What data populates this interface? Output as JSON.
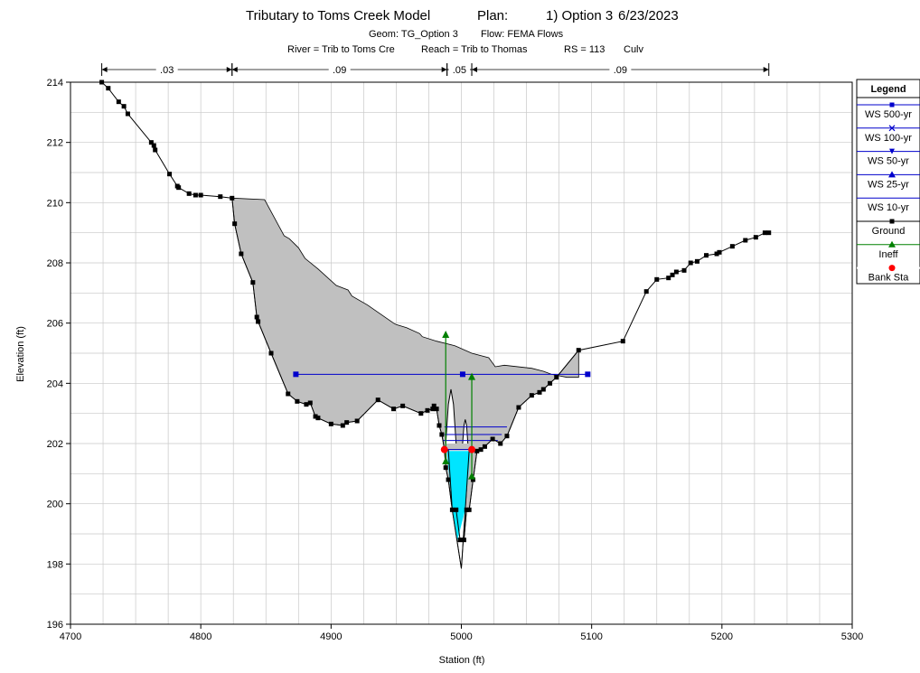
{
  "chart_data": {
    "type": "line",
    "title": "Tributary to Toms Creek Model",
    "title_plan": "Plan:",
    "title_option": "1) Option 3",
    "title_date": "6/23/2023",
    "subtitle_geom": "Geom: TG_Option 3",
    "subtitle_flow": "Flow: FEMA Flows",
    "subtitle_river": "River = Trib to Toms Cre",
    "subtitle_reach": "Reach = Trib to Thomas",
    "subtitle_rs": "RS = 113",
    "subtitle_type": "Culv",
    "xlabel": "Station (ft)",
    "ylabel": "Elevation (ft)",
    "xlim": [
      4700,
      5300
    ],
    "ylim": [
      196,
      214
    ],
    "xticks": [
      "4700",
      "4800",
      "4900",
      "5000",
      "5100",
      "5200",
      "5300"
    ],
    "yticks": [
      "196",
      "198",
      "200",
      "202",
      "204",
      "206",
      "208",
      "210",
      "212",
      "214"
    ],
    "grid": true,
    "legend_position": "right",
    "legend_title": "Legend",
    "legend": [
      {
        "label": "WS 500-yr",
        "color": "#0000cc",
        "marker": "square"
      },
      {
        "label": "WS 100-yr",
        "color": "#0000cc",
        "marker": "x"
      },
      {
        "label": "WS 50-yr",
        "color": "#0000cc",
        "marker": "triangle-down"
      },
      {
        "label": "WS 25-yr",
        "color": "#0000cc",
        "marker": "triangle-up"
      },
      {
        "label": "WS 10-yr",
        "color": "#0000cc",
        "marker": "none"
      },
      {
        "label": "Ground",
        "color": "#000000",
        "marker": "square"
      },
      {
        "label": "Ineff",
        "color": "#008000",
        "marker": "triangle-up"
      },
      {
        "label": "Bank Sta",
        "color": "#ff0000",
        "marker": "circle"
      }
    ],
    "mannings_n": [
      {
        "label": ".03",
        "from": 4724,
        "to": 4824
      },
      {
        "label": ".09",
        "from": 4824,
        "to": 4989
      },
      {
        "label": ".05",
        "from": 4989,
        "to": 5008
      },
      {
        "label": ".09",
        "from": 5008,
        "to": 5236
      }
    ],
    "ground": {
      "x": [
        4724,
        4729,
        4737,
        4741,
        4744,
        4762,
        4764,
        4765,
        4776,
        4782,
        4783,
        4791,
        4796,
        4800,
        4815,
        4824,
        4826,
        4831,
        4840,
        4843,
        4844,
        4854,
        4867,
        4874,
        4881,
        4884,
        4888,
        4890,
        4900,
        4909,
        4912,
        4920,
        4936,
        4948,
        4955,
        4969,
        4974,
        4978,
        4979,
        4981,
        4983,
        4985,
        4987,
        4988,
        4990,
        4993,
        4996,
        4999,
        5002,
        5004,
        5006,
        5009,
        5012,
        5015,
        5018,
        5024,
        5030,
        5035,
        5044,
        5054,
        5060,
        5063,
        5068,
        5073,
        5090,
        5124,
        5142,
        5150,
        5159,
        5162,
        5165,
        5171,
        5176,
        5181,
        5188,
        5196,
        5198,
        5208,
        5218,
        5226,
        5233,
        5236
      ],
      "y": [
        214.0,
        213.8,
        213.35,
        213.2,
        212.95,
        212.0,
        211.9,
        211.75,
        210.95,
        210.55,
        210.5,
        210.3,
        210.25,
        210.25,
        210.2,
        210.15,
        209.3,
        208.3,
        207.35,
        206.2,
        206.05,
        205.0,
        203.65,
        203.4,
        203.3,
        203.35,
        202.9,
        202.85,
        202.65,
        202.6,
        202.7,
        202.75,
        203.45,
        203.15,
        203.25,
        203.0,
        203.1,
        203.15,
        203.25,
        203.15,
        202.6,
        202.3,
        201.8,
        201.2,
        200.8,
        199.8,
        199.8,
        198.8,
        198.8,
        199.8,
        199.8,
        200.8,
        201.75,
        201.8,
        201.9,
        202.15,
        202.0,
        202.25,
        203.2,
        203.6,
        203.7,
        203.8,
        204.0,
        204.2,
        205.1,
        205.4,
        207.05,
        207.45,
        207.5,
        207.6,
        207.7,
        207.75,
        208.0,
        208.05,
        208.25,
        208.3,
        208.35,
        208.55,
        208.75,
        208.85,
        209.0,
        209.0
      ]
    },
    "roadway": {
      "x": [
        4824,
        4849,
        4854,
        4859,
        4864,
        4868,
        4875,
        4880,
        4890,
        4904,
        4913,
        4916,
        4928,
        4948,
        4950,
        4958,
        4968,
        4970,
        4981,
        4995,
        5008,
        5021,
        5026,
        5033,
        5054,
        5063,
        5069,
        5081,
        5090
      ],
      "y": [
        210.15,
        210.1,
        209.7,
        209.3,
        208.9,
        208.8,
        208.5,
        208.15,
        207.8,
        207.25,
        207.1,
        206.9,
        206.6,
        206.0,
        205.95,
        205.85,
        205.65,
        205.55,
        205.4,
        205.25,
        205.0,
        204.85,
        204.55,
        204.6,
        204.5,
        204.4,
        204.3,
        204.2,
        204.2
      ]
    },
    "culvert": {
      "left_opening": {
        "x": [
          4988,
          4990,
          4992,
          4994,
          4996
        ],
        "y": [
          202.0,
          203.3,
          203.8,
          203.3,
          202.0
        ]
      },
      "right_opening": {
        "x": [
          5001,
          5002,
          5003,
          5004,
          5005
        ],
        "y": [
          202.0,
          202.6,
          202.8,
          202.6,
          202.0
        ]
      },
      "barrel_bottom": {
        "x": [
          4990,
          4993,
          5000,
          5003,
          5006
        ],
        "y": [
          201.8,
          199.8,
          197.85,
          199.8,
          201.8
        ]
      }
    },
    "water_surfaces": [
      {
        "name": "WS 500-yr",
        "elevation": 204.3,
        "left": 4873,
        "right": 5097
      },
      {
        "name": "WS 100-yr",
        "elevation": 202.55,
        "left": 4987,
        "right": 5035
      },
      {
        "name": "WS 50-yr",
        "elevation": 202.3,
        "left": 4987,
        "right": 5031
      },
      {
        "name": "WS 25-yr",
        "elevation": 202.1,
        "left": 4986,
        "right": 5028
      },
      {
        "name": "WS 10-yr",
        "elevation": 201.8,
        "left": 4987,
        "right": 5014
      }
    ],
    "ineffective_flow": [
      {
        "x": 4988,
        "bottom": 201.4,
        "top": 205.6
      },
      {
        "x": 5008,
        "bottom": 200.9,
        "top": 204.2
      }
    ],
    "bank_stations": [
      {
        "x": 4987,
        "y": 201.8
      },
      {
        "x": 5008,
        "y": 201.8
      }
    ],
    "colors": {
      "ground": "#000000",
      "water_surface": "#0000cc",
      "water_fill": "#00e5ff",
      "road_fill": "#c0c0c0",
      "ineffective": "#008000",
      "bank_station": "#ff0000",
      "grid": "#c8c8c8"
    }
  }
}
